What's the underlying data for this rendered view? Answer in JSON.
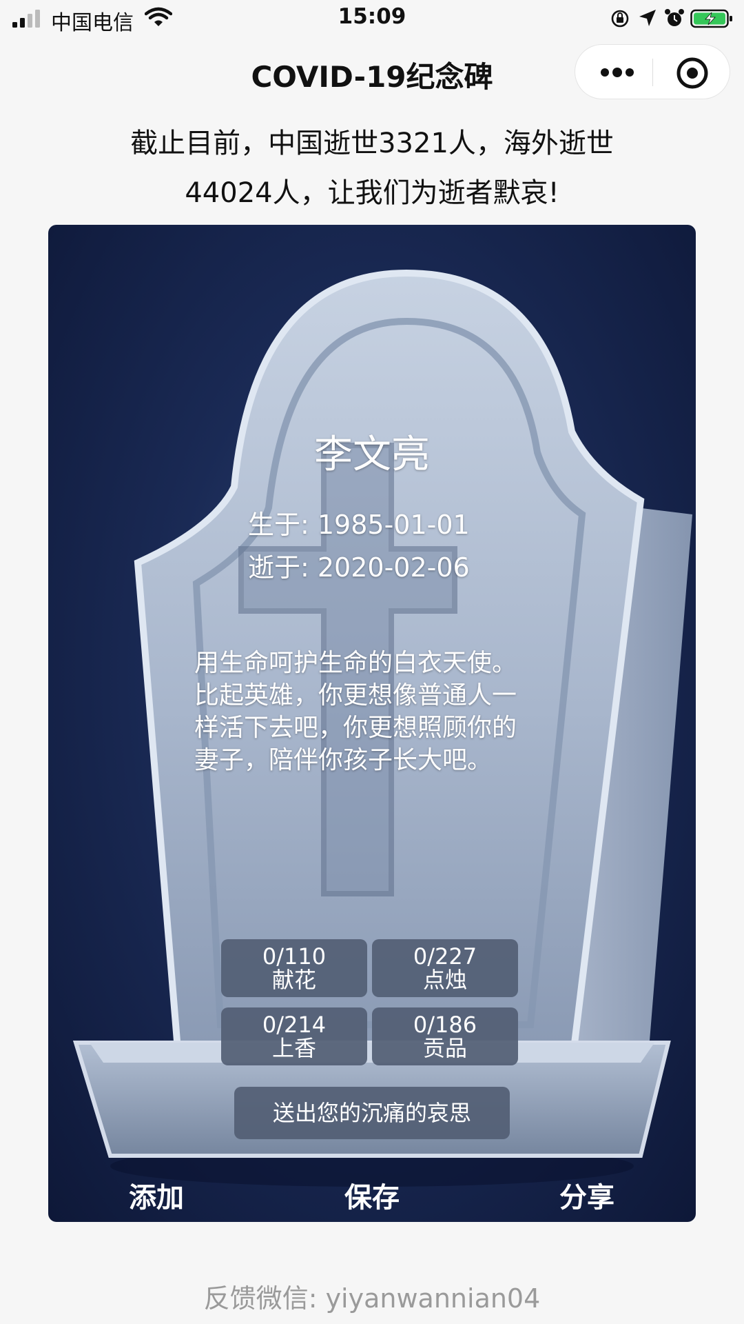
{
  "status_bar": {
    "carrier": "中国电信",
    "time": "15:09"
  },
  "nav": {
    "title": "COVID-19纪念碑"
  },
  "headline": {
    "line1": "截止目前，中国逝世3321人，海外逝世",
    "line2": "44024人，让我们为逝者默哀!"
  },
  "memorial": {
    "name": "李文亮",
    "born": "生于: 1985-01-01",
    "died": "逝于: 2020-02-06",
    "epitaph": "用生命呵护生命的白衣天使。比起英雄，你更想像普通人一样活下去吧，你更想照顾你的妻子，陪伴你孩子长大吧。"
  },
  "offerings": [
    {
      "count": "0/110",
      "label": "献花"
    },
    {
      "count": "0/227",
      "label": "点烛"
    },
    {
      "count": "0/214",
      "label": "上香"
    },
    {
      "count": "0/186",
      "label": "贡品"
    }
  ],
  "mourn_button": "送出您的沉痛的哀思",
  "actions": {
    "add": "添加",
    "save": "保存",
    "share": "分享"
  },
  "footer": "反馈微信: yiyanwannian04",
  "colors": {
    "background": "#f6f6f6",
    "card_bg": "#1a2a55",
    "stone": "#b9c6d8",
    "button_bg": "#525e74"
  }
}
